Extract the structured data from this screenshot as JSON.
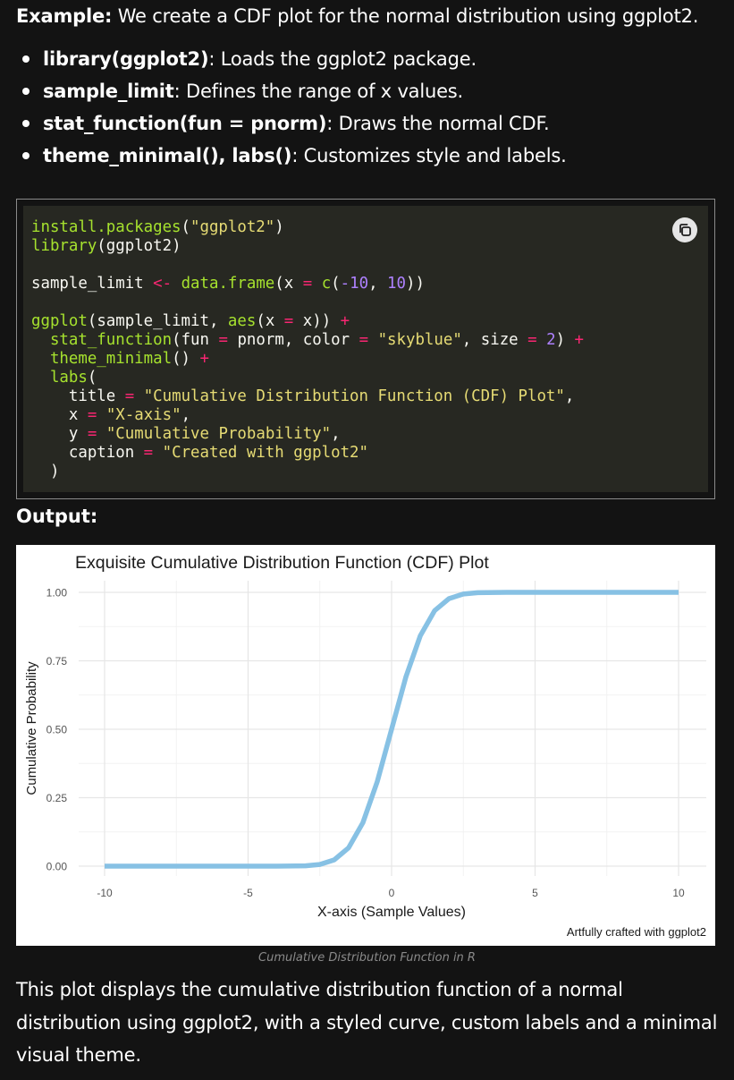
{
  "intro": {
    "lead": "Example:",
    "text": " We create a CDF plot for the normal distribution using ggplot2."
  },
  "bullets": [
    {
      "term": "library(ggplot2)",
      "desc": ": Loads the ggplot2 package."
    },
    {
      "term": "sample_limit",
      "desc": ": Defines the range of x values."
    },
    {
      "term": "stat_function(fun = pnorm)",
      "desc": ": Draws the normal CDF."
    },
    {
      "term": "theme_minimal(), labs()",
      "desc": ": Customizes style and labels."
    }
  ],
  "code": {
    "copy_icon": "copy-icon",
    "tokens": {
      "install_fn": "install.packages",
      "pkg_str": "\"ggplot2\"",
      "library_fn": "library",
      "lib_arg": "ggplot2",
      "var": "sample_limit",
      "assign": "<-",
      "dataframe_fn": "data.frame",
      "x_arg": "x",
      "eq": "=",
      "c_fn": "c",
      "num_min": "-10",
      "num_max": "10",
      "ggplot_fn": "ggplot",
      "aes_fn": "aes",
      "plus": "+",
      "stat_fn": "stat_function",
      "fun_arg": "fun",
      "pnorm": "pnorm",
      "color_arg": "color",
      "color_val": "\"skyblue\"",
      "size_arg": "size",
      "size_val": "2",
      "theme_fn": "theme_minimal",
      "labs_fn": "labs",
      "title_arg": "title",
      "title_val": "\"Cumulative Distribution Function (CDF) Plot\"",
      "x_val": "\"X-axis\"",
      "y_arg": "y",
      "y_val": "\"Cumulative Probability\"",
      "caption_arg": "caption",
      "caption_val": "\"Created with ggplot2\""
    }
  },
  "output_label": "Output:",
  "chart_data": {
    "type": "line",
    "title": "Exquisite Cumulative Distribution Function (CDF) Plot",
    "xlabel": "X-axis (Sample Values)",
    "ylabel": "Cumulative Probability",
    "caption": "Artfully crafted with ggplot2",
    "xlim": [
      -10,
      10
    ],
    "ylim": [
      0,
      1
    ],
    "x_ticks": [
      -10,
      -5,
      0,
      5,
      10
    ],
    "x_tick_labels": [
      "-10",
      "-5",
      "0",
      "5",
      "10"
    ],
    "y_ticks": [
      0,
      0.25,
      0.5,
      0.75,
      1
    ],
    "y_tick_labels": [
      "0.00",
      "0.25",
      "0.50",
      "0.75",
      "1.00"
    ],
    "grid": true,
    "series": [
      {
        "color": "#87c1e4",
        "x": [
          -10,
          -4,
          -3,
          -2.5,
          -2,
          -1.5,
          -1,
          -0.5,
          0,
          0.5,
          1,
          1.5,
          2,
          2.5,
          3,
          4,
          10
        ],
        "y": [
          0,
          3e-05,
          0.0013,
          0.0062,
          0.0228,
          0.0668,
          0.1587,
          0.3085,
          0.5,
          0.6915,
          0.8413,
          0.9332,
          0.9772,
          0.9938,
          0.9987,
          0.99997,
          1
        ]
      }
    ]
  },
  "figure_caption": "Cumulative Distribution Function in R",
  "paragraph": "This plot displays the cumulative distribution function of a normal distribution using ggplot2, with a styled curve, custom labels and a minimal visual theme."
}
